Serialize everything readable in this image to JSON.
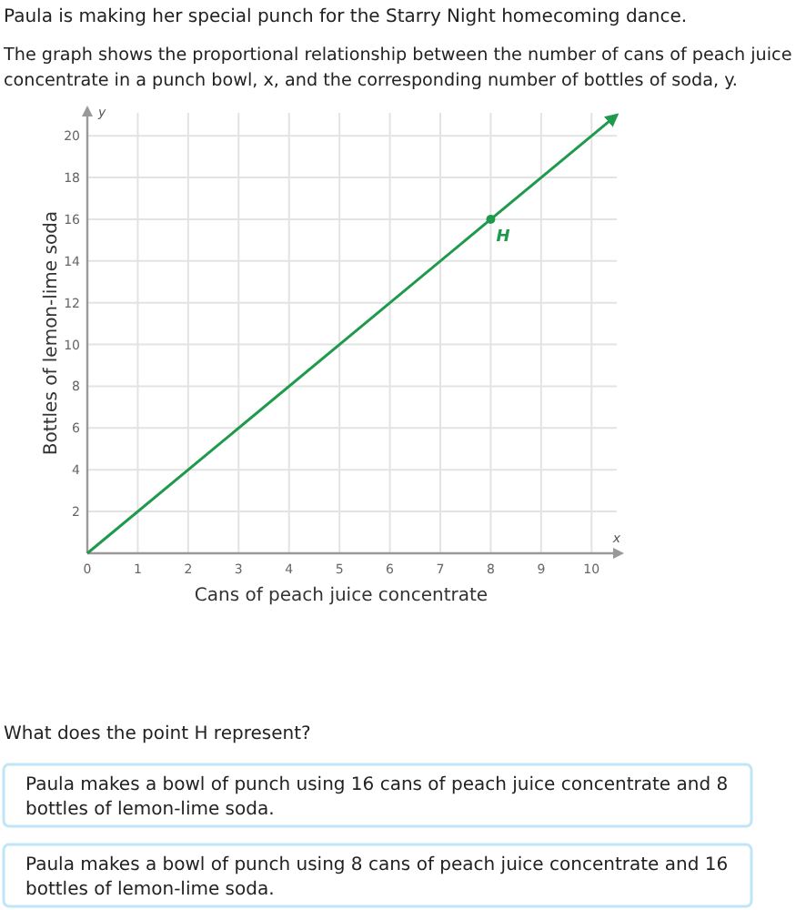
{
  "chart_data": {
    "type": "line",
    "title": "Paula is making her special punch for the Starry Night homecoming dance.",
    "subtitle": "The graph shows the proportional relationship between the number of cans of peach juice concentrate in a punch bowl, x, and the corresponding number of bottles of soda, y.",
    "xlabel": "Cans of peach juice concentrate",
    "ylabel": "Bottles of lemon-lime soda",
    "xlim": [
      0,
      10.5
    ],
    "ylim": [
      0,
      21.1
    ],
    "xticks": [
      0,
      1,
      2,
      3,
      4,
      5,
      6,
      7,
      8,
      9,
      10
    ],
    "yticks": [
      {
        "value": 0,
        "label": null
      },
      2,
      4,
      6,
      8,
      10,
      12,
      14,
      16,
      18,
      20
    ],
    "grid": true,
    "series": [
      {
        "color": "#1f9a4c",
        "x": [
          0,
          10.5
        ],
        "values": [
          0,
          21
        ],
        "marker": "none"
      },
      {
        "type": "scatter",
        "color": "#1f9a4c",
        "x": [
          8
        ],
        "values": [
          16
        ],
        "marker": "circle"
      }
    ],
    "annotations": [
      "x",
      "y",
      "What does the point H represent?",
      "Paula makes a bowl of punch using 16 cans of peach juice concentrate and 8 bottles of lemon-lime soda.",
      "Paula makes a bowl of punch using 8 cans of peach juice concentrate and 16 bottles of lemon-lime soda.",
      {
        "text": "H",
        "x": 8,
        "y": 16
      }
    ]
  }
}
